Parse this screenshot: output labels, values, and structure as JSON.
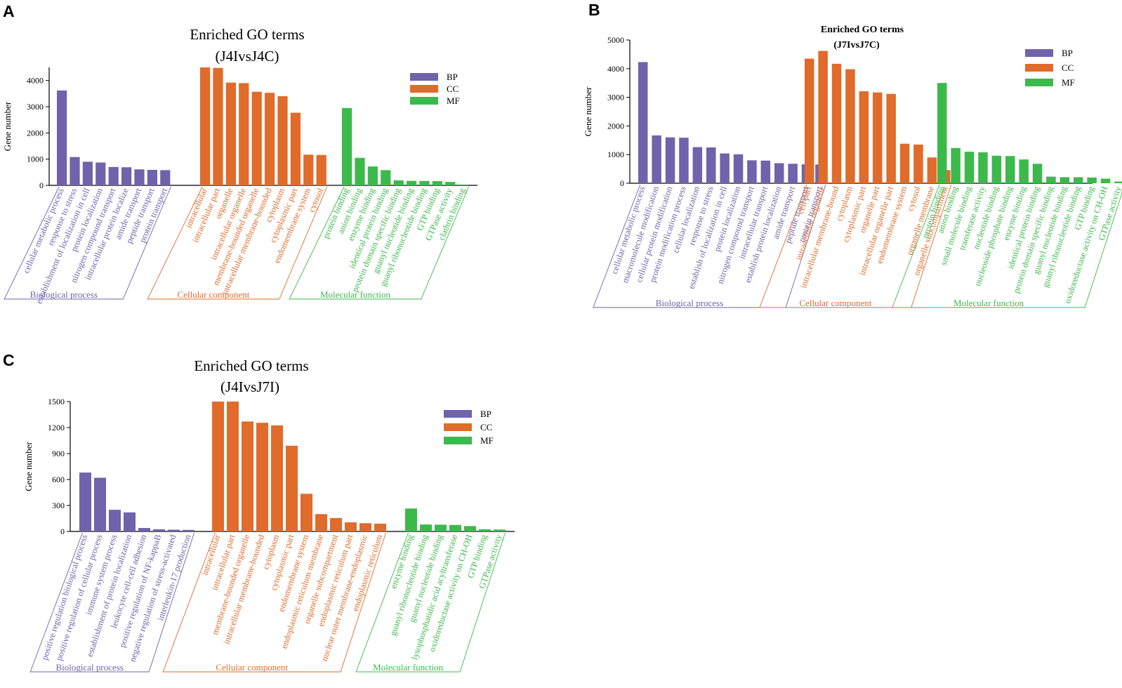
{
  "colors": {
    "BP": "#7062ab",
    "CC": "#e06b2a",
    "MF": "#3cb94b"
  },
  "chart_data": [
    {
      "panel": "A",
      "type": "bar",
      "title": "Enriched GO terms",
      "subtitle": "(J4IvsJ4C)",
      "ylabel": "Gene number",
      "ylim": [
        0,
        4500
      ],
      "yticks": [
        0,
        1000,
        2000,
        3000,
        4000
      ],
      "legend": [
        "BP",
        "CC",
        "MF"
      ],
      "groups": [
        {
          "key": "BP",
          "label": "Biological process",
          "categories": [
            "cellular metabolic process",
            "response to stress",
            "establishment of localization in cell",
            "protein localization",
            "nitrogen compound transport",
            "intracellular protein localize",
            "amide transport",
            "peptide transport",
            "protein transport"
          ],
          "values": [
            3620,
            1080,
            900,
            870,
            700,
            690,
            610,
            590,
            580
          ]
        },
        {
          "key": "CC",
          "label": "Cellular component",
          "categories": [
            "intracellular",
            "intracellular part",
            "organelle",
            "intracellular organelle",
            "membrane-bounded organelle",
            "intracellular membrane-bounded",
            "cytoplasm",
            "cytoplasmic part",
            "endomembrane system",
            "cytosol"
          ],
          "values": [
            4500,
            4480,
            3920,
            3900,
            3570,
            3530,
            3400,
            2770,
            1170,
            1160
          ]
        },
        {
          "key": "MF",
          "label": "Molecular function",
          "categories": [
            "protein binding",
            "anion binding",
            "enzyme binding",
            "identical protein binding",
            "protein domain specific binding",
            "guanyl nucleotide binding",
            "guanyl ribonucleotide binding",
            "GTP binding",
            "GTPase activity",
            "clathrin binding"
          ],
          "values": [
            2950,
            1050,
            720,
            580,
            190,
            170,
            165,
            160,
            130,
            30
          ]
        }
      ]
    },
    {
      "panel": "B",
      "type": "bar",
      "title": "Enriched GO terms",
      "subtitle": "(J7IvsJ7C)",
      "ylabel": "Gene number",
      "ylim": [
        0,
        5000
      ],
      "yticks": [
        0,
        1000,
        2000,
        3000,
        4000,
        5000
      ],
      "legend": [
        "BP",
        "CC",
        "MF"
      ],
      "groups": [
        {
          "key": "BP",
          "label": "Biological process",
          "categories": [
            "cellular metabolic process",
            "macromolecule modification",
            "cellular protein modification",
            "protein modification process",
            "cellular localization",
            "response to stress",
            "establish of localization in cell",
            "protein localization",
            "nitrogen compound transport",
            "intracellular transport",
            "establish protein localization",
            "amide transport",
            "peptide transport",
            "protein transport"
          ],
          "values": [
            4230,
            1670,
            1600,
            1590,
            1260,
            1250,
            1040,
            1010,
            800,
            790,
            700,
            680,
            660,
            655
          ]
        },
        {
          "key": "CC",
          "label": "Cellular component",
          "categories": [
            "cell part",
            "intracellular organelle",
            "intracellular membrane-bound",
            "cytoplasm",
            "cytoplasmic part",
            "organelle part",
            "intracellular organelle part",
            "endomembrane system",
            "cytosol",
            "organelle membrane",
            "organelle subcompartment"
          ],
          "values": [
            4350,
            4620,
            4170,
            3980,
            3210,
            3170,
            3120,
            1380,
            1350,
            900,
            460
          ]
        },
        {
          "key": "MF",
          "label": "Molecular function",
          "categories": [
            "protein binding",
            "anion binding",
            "small molecule binding",
            "transferase activity",
            "nucleotide binding",
            "nucleoside phosphate binding",
            "enzyme binding",
            "identical protein binding",
            "protein domain specific binding",
            "guanyl nucleotide binding",
            "guanyl ribonucleotide binding",
            "GTP binding",
            "oxidoreductase activity on CH-OH",
            "GTPase activity"
          ],
          "values": [
            3500,
            1230,
            1100,
            1080,
            960,
            950,
            830,
            680,
            230,
            210,
            210,
            200,
            160,
            60
          ]
        }
      ]
    },
    {
      "panel": "C",
      "type": "bar",
      "title": "Enriched GO terms",
      "subtitle": "(J4IvsJ7I)",
      "ylabel": "Gene number",
      "ylim": [
        0,
        1500
      ],
      "yticks": [
        0,
        300,
        600,
        900,
        1200,
        1500
      ],
      "legend": [
        "BP",
        "CC",
        "MF"
      ],
      "groups": [
        {
          "key": "BP",
          "label": "Biological process",
          "categories": [
            "positive regulation biological process",
            "positive regulation of cellular process",
            "immune system process",
            "establishment of protein localization",
            "leukocyte cell-cell adhesion",
            "positive regulation of NF-kappaB",
            "negative regulation of stress-activated",
            "interleukin-17 production"
          ],
          "values": [
            680,
            620,
            250,
            220,
            40,
            25,
            20,
            18
          ]
        },
        {
          "key": "CC",
          "label": "Cellular component",
          "categories": [
            "intracellular",
            "intracellular part",
            "membrane-bounded organelle",
            "intracellular membrane-bounded",
            "cytoplasm",
            "cytoplasmic part",
            "endomembrane system",
            "endoplasmic reticulum membrane",
            "organelle subcompartment",
            "endoplasmic reticulum part",
            "nuclear outer membrane-endoplasmic",
            "endoplasmic reticulum"
          ],
          "values": [
            1500,
            1500,
            1270,
            1255,
            1225,
            990,
            435,
            200,
            155,
            105,
            95,
            90
          ]
        },
        {
          "key": "MF",
          "label": "Molecular function",
          "categories": [
            "enzyme binding",
            "guanyl ribonucleotide binding",
            "guanyl nucleotide binding",
            "lysophosphatidic acid acyltransferase",
            "oxidoreductase activity on CH-OH",
            "GTP binding",
            "GTPase activity"
          ],
          "values": [
            265,
            80,
            78,
            75,
            62,
            25,
            22
          ]
        }
      ]
    }
  ]
}
